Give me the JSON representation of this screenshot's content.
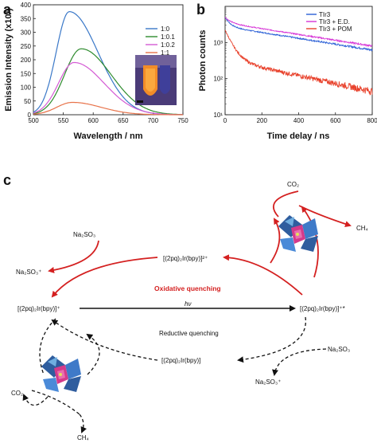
{
  "panels": {
    "a_label": "a",
    "b_label": "b",
    "c_label": "c"
  },
  "chart_data": [
    {
      "type": "line",
      "xlabel": "Wavelength / nm",
      "ylabel": "Emission Intensity (x10³)",
      "xlim": [
        500,
        750
      ],
      "ylim": [
        0,
        400
      ],
      "x_ticks": [
        "500",
        "550",
        "600",
        "650",
        "700",
        "750"
      ],
      "y_ticks": [
        "0",
        "50",
        "100",
        "150",
        "200",
        "250",
        "300",
        "350",
        "400"
      ],
      "grid": false,
      "legend_position": "top-right",
      "series": [
        {
          "name": "1:0",
          "color": "#3a78c8",
          "peak_x": 560,
          "peak_y": 375,
          "width_left": 22,
          "width_right": 48
        },
        {
          "name": "1:0.1",
          "color": "#2e8b2e",
          "peak_x": 580,
          "peak_y": 240,
          "width_left": 28,
          "width_right": 50
        },
        {
          "name": "1:0.2",
          "color": "#d45bd4",
          "peak_x": 568,
          "peak_y": 190,
          "width_left": 26,
          "width_right": 50
        },
        {
          "name": "1:1",
          "color": "#e8734a",
          "peak_x": 565,
          "peak_y": 45,
          "width_left": 26,
          "width_right": 48
        }
      ]
    },
    {
      "type": "line",
      "xlabel": "Time delay / ns",
      "ylabel": "Photon counts",
      "xlim": [
        0,
        800
      ],
      "ylim_log": [
        10,
        10000
      ],
      "log_y": true,
      "x_ticks": [
        "0",
        "200",
        "400",
        "600",
        "800"
      ],
      "y_ticks": [
        "10¹",
        "10²",
        "10³"
      ],
      "grid": false,
      "legend_position": "top-right",
      "series": [
        {
          "name": "TIr3",
          "color": "#2a5fd6",
          "start": 5000,
          "end": 620,
          "fast_amp": 0.45,
          "fast_tau": 25
        },
        {
          "name": "TIr3 + E.D.",
          "color": "#d633d6",
          "start": 5000,
          "end": 800,
          "fast_amp": 0.3,
          "fast_tau": 30
        },
        {
          "name": "TIr3 + POM",
          "color": "#e8402a",
          "start": 2200,
          "end": 45,
          "fast_amp": 0.85,
          "fast_tau": 35
        }
      ]
    }
  ],
  "scheme": {
    "na2so3_top": "Na₂SO₃",
    "na2so3_top_ox": "Na₂SO₃⁺",
    "ir_oxidized": "[(2pq)₂Ir(bpy)]²⁺",
    "oxidative_quenching": "Oxidative quenching",
    "ir_ground": "[(2pq)₂Ir(bpy)]⁺",
    "hv": "hν",
    "ir_excited": "[(2pq)₂Ir(bpy)]⁺*",
    "reductive_quenching": "Reductive quenching",
    "ir_reduced": "[(2pq)₂Ir(bpy)]",
    "na2so3_bottom": "Na₂SO₃",
    "na2so3_bottom_ox": "Na₂SO₃⁺",
    "co2_top": "CO₂",
    "ch4_top": "CH₄",
    "co2_bottom": "CO₂",
    "ch4_bottom": "CH₄",
    "red_color": "#d42020"
  }
}
